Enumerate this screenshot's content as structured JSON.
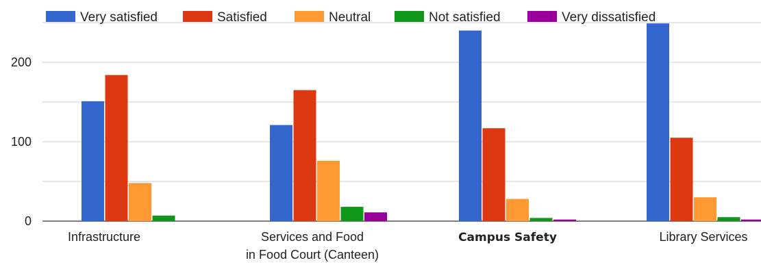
{
  "chart_data": {
    "type": "bar",
    "title": "",
    "xlabel": "",
    "ylabel": "",
    "ylim": [
      0,
      250
    ],
    "yticks": [
      "0",
      "100",
      "200"
    ],
    "grid": true,
    "legend_position": "top",
    "categories": [
      [
        "Infrastructure"
      ],
      [
        "Services and Food",
        "in Food Court (Canteen)"
      ],
      [
        "Campus Safety"
      ],
      [
        "Library Services"
      ]
    ],
    "category_bold": [
      false,
      false,
      true,
      false
    ],
    "series": [
      {
        "name": "Very satisfied",
        "color": "#3366cc",
        "values": [
          151,
          121,
          240,
          249
        ]
      },
      {
        "name": "Satisfied",
        "color": "#dc3912",
        "values": [
          184,
          165,
          117,
          105
        ]
      },
      {
        "name": "Neutral",
        "color": "#ff9933",
        "values": [
          48,
          76,
          28,
          30
        ]
      },
      {
        "name": "Not satisfied",
        "color": "#109618",
        "values": [
          7,
          18,
          4,
          5
        ]
      },
      {
        "name": "Very dissatisfied",
        "color": "#990099",
        "values": [
          0,
          11,
          2,
          2
        ]
      }
    ]
  }
}
